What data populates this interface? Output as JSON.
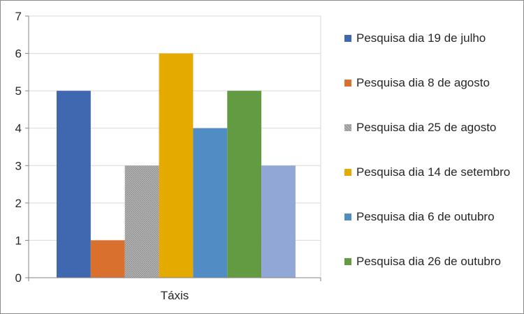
{
  "chart_data": {
    "type": "bar",
    "title": "",
    "xlabel": "",
    "ylabel": "",
    "categories": [
      "Táxis"
    ],
    "ylim": [
      0,
      7
    ],
    "yticks": [
      0,
      1,
      2,
      3,
      4,
      5,
      6,
      7
    ],
    "grid": "horizontal",
    "legend_position": "right",
    "series": [
      {
        "name": "Pesquisa dia 19 de julho",
        "values": [
          5
        ],
        "color": "#4068B0"
      },
      {
        "name": "Pesquisa dia 8 de agosto",
        "values": [
          1
        ],
        "color": "#D9702E"
      },
      {
        "name": "Pesquisa dia 25 de agosto",
        "values": [
          3
        ],
        "color": "#A5A5A5",
        "pattern": "hatched"
      },
      {
        "name": "Pesquisa dia 14 de setembro",
        "values": [
          6
        ],
        "color": "#E5AA00"
      },
      {
        "name": "Pesquisa dia 6 de outubro",
        "values": [
          4
        ],
        "color": "#528CC4"
      },
      {
        "name": "Pesquisa dia 26 de outubro",
        "values": [
          5
        ],
        "color": "#629B41"
      },
      {
        "name": "",
        "values": [
          3
        ],
        "color": "#91A7D6"
      }
    ]
  }
}
